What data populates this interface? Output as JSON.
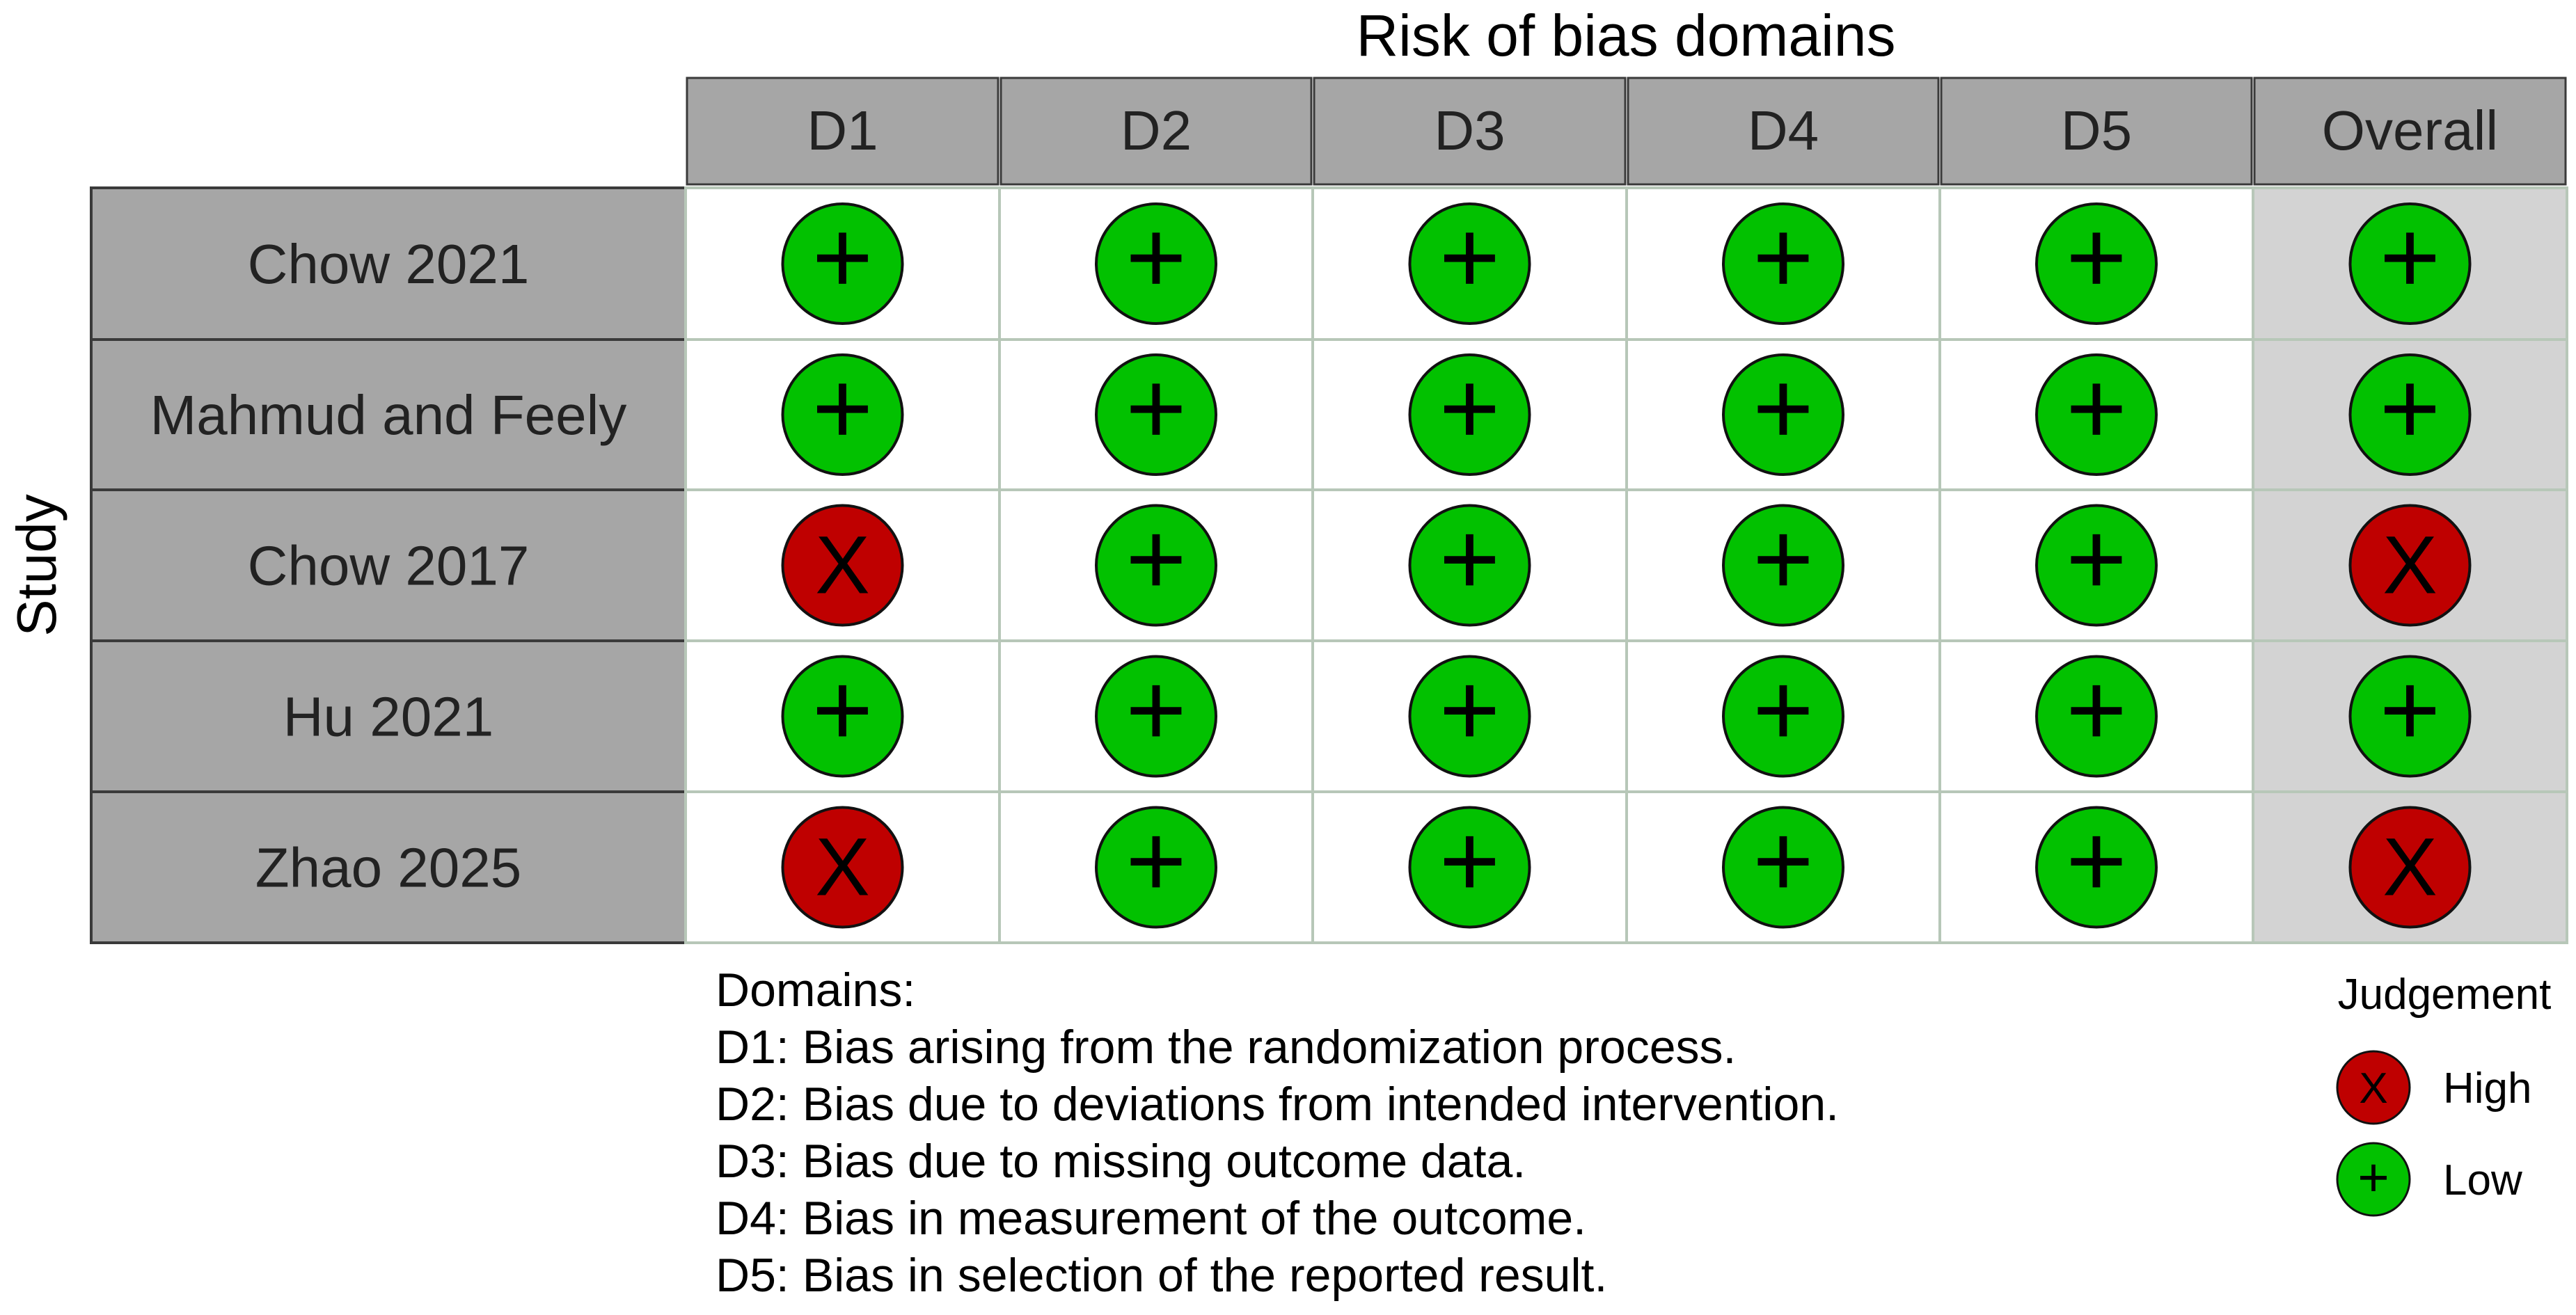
{
  "chart_data": {
    "type": "table",
    "title": "Risk of bias domains",
    "row_axis_label": "Study",
    "columns": [
      "D1",
      "D2",
      "D3",
      "D4",
      "D5",
      "Overall"
    ],
    "studies": [
      "Chow 2021",
      "Mahmud and Feely",
      "Chow 2017",
      "Hu 2021",
      "Zhao 2025"
    ],
    "judgements": [
      [
        "Low",
        "Low",
        "Low",
        "Low",
        "Low",
        "Low"
      ],
      [
        "Low",
        "Low",
        "Low",
        "Low",
        "Low",
        "Low"
      ],
      [
        "High",
        "Low",
        "Low",
        "Low",
        "Low",
        "High"
      ],
      [
        "Low",
        "Low",
        "Low",
        "Low",
        "Low",
        "Low"
      ],
      [
        "High",
        "Low",
        "Low",
        "Low",
        "Low",
        "High"
      ]
    ],
    "judgement_levels": [
      {
        "label": "High",
        "symbol": "X",
        "color": "#bf0000"
      },
      {
        "label": "Low",
        "symbol": "+",
        "color": "#02c100"
      }
    ],
    "legend_title": "Judgement",
    "legend_placement": "bottom-right",
    "domains_note": {
      "heading": "Domains:",
      "lines": [
        "D1: Bias arising from the randomization process.",
        "D2: Bias due to deviations from intended intervention.",
        "D3: Bias due to missing outcome data.",
        "D4: Bias in measurement of the outcome.",
        "D5: Bias in selection of the reported result."
      ]
    },
    "colors": {
      "header_fill": "#a6a6a6",
      "overall_fill": "#d3d3d3",
      "cell_fill": "#ffffff",
      "grid_line": "#b7c7b8",
      "border": "#3a3a3a"
    }
  }
}
